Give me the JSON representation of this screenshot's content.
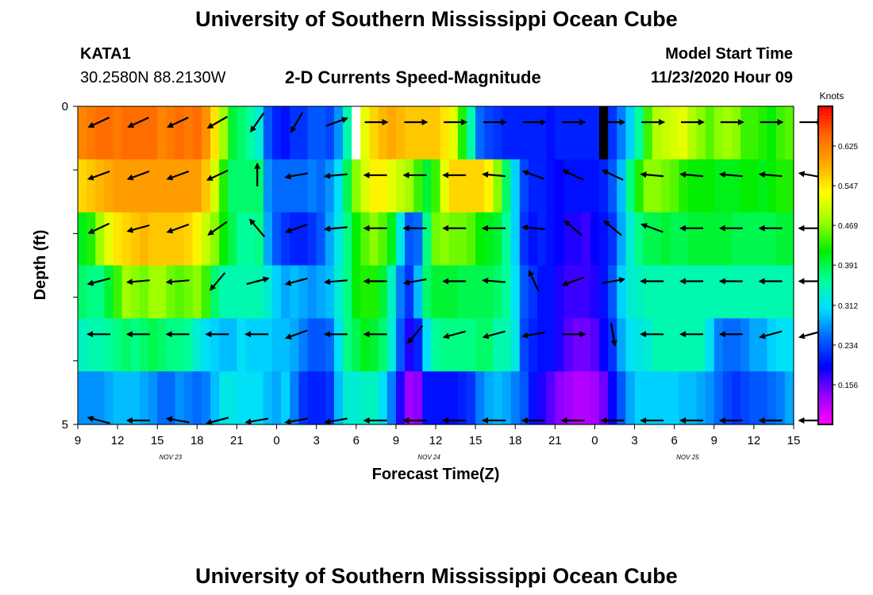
{
  "header": {
    "title": "University of Southern Mississippi Ocean Cube",
    "station_id": "KATA1",
    "station_coords": "30.2580N 88.2130W",
    "subtitle": "2-D Currents Speed-Magnitude",
    "model_start_label": "Model Start Time",
    "model_start_value": "11/23/2020 Hour 09"
  },
  "footer": {
    "title": "University of Southern Mississippi Ocean Cube"
  },
  "chart_data": {
    "type": "heatmap",
    "title": "2-D Currents Speed-Magnitude",
    "xlabel": "Forecast Time(Z)",
    "ylabel": "Depth (ft)",
    "x_tick_labels": [
      "9",
      "12",
      "15",
      "18",
      "21",
      "0",
      "3",
      "6",
      "9",
      "12",
      "15",
      "18",
      "21",
      "0",
      "3",
      "6",
      "9",
      "12",
      "15"
    ],
    "date_labels": [
      {
        "label": "NOV  23",
        "hour_index": 7
      },
      {
        "label": "NOV  24",
        "hour_index": 26.5
      },
      {
        "label": "NOV  25",
        "hour_index": 46
      }
    ],
    "x_range_hours": [
      0,
      54
    ],
    "y_ticks": [
      "0",
      "",
      "",
      "",
      "",
      "5"
    ],
    "ylim": [
      0,
      5
    ],
    "colorbar": {
      "label": "Knots",
      "tick_labels": [
        "0.625",
        "0.547",
        "0.469",
        "0.391",
        "0.312",
        "0.234",
        "0.156"
      ],
      "tick_values": [
        0.625,
        0.547,
        0.469,
        0.391,
        0.312,
        0.234,
        0.156
      ],
      "range": [
        0.078,
        0.703
      ],
      "colors": [
        "#ff00ff",
        "#9900ff",
        "#0000ff",
        "#0066ff",
        "#00ddff",
        "#00ff99",
        "#00ee00",
        "#99ff00",
        "#ffff00",
        "#ffaa00",
        "#ff6600",
        "#ff0000"
      ]
    },
    "speed_knots_by_depth_band": [
      [
        0.62,
        0.63,
        0.64,
        0.64,
        0.63,
        0.64,
        0.64,
        0.64,
        0.64,
        0.62,
        0.63,
        0.64,
        0.63,
        0.64,
        0.61,
        0.55,
        0.48,
        0.4,
        0.38,
        0.36,
        0.33,
        0.24,
        0.21,
        0.2,
        0.22,
        0.22,
        0.24,
        0.24,
        0.23,
        0.27,
        0.35,
        0.45,
        0.52,
        0.56,
        0.58,
        0.59,
        0.58,
        0.57,
        0.57,
        0.57,
        0.57,
        0.55,
        0.52,
        0.43,
        0.35,
        0.25,
        0.23,
        0.22,
        0.21,
        0.21,
        0.21,
        0.21,
        0.21,
        0.2,
        0.21,
        0.21,
        0.21,
        0.21,
        0.21,
        0.2,
        0.22,
        0.26,
        0.3,
        0.36,
        0.44,
        0.49,
        0.5,
        0.51,
        0.52,
        0.49,
        0.47,
        0.45,
        0.47,
        0.48,
        0.47,
        0.44,
        0.44,
        0.43,
        0.42,
        0.44,
        0.45
      ],
      [
        0.56,
        0.57,
        0.58,
        0.59,
        0.6,
        0.6,
        0.6,
        0.6,
        0.6,
        0.6,
        0.6,
        0.6,
        0.6,
        0.6,
        0.57,
        0.51,
        0.43,
        0.38,
        0.38,
        0.38,
        0.38,
        0.27,
        0.25,
        0.25,
        0.25,
        0.25,
        0.26,
        0.25,
        0.27,
        0.31,
        0.39,
        0.47,
        0.51,
        0.54,
        0.54,
        0.52,
        0.5,
        0.48,
        0.44,
        0.4,
        0.44,
        0.52,
        0.56,
        0.56,
        0.56,
        0.56,
        0.54,
        0.47,
        0.38,
        0.3,
        0.23,
        0.21,
        0.21,
        0.2,
        0.19,
        0.2,
        0.2,
        0.2,
        0.2,
        0.21,
        0.24,
        0.29,
        0.37,
        0.43,
        0.47,
        0.47,
        0.46,
        0.45,
        0.43,
        0.42,
        0.42,
        0.42,
        0.41,
        0.41,
        0.41,
        0.42,
        0.42,
        0.41,
        0.42,
        0.43,
        0.43
      ],
      [
        0.41,
        0.43,
        0.48,
        0.52,
        0.55,
        0.56,
        0.57,
        0.58,
        0.57,
        0.57,
        0.57,
        0.57,
        0.56,
        0.54,
        0.5,
        0.47,
        0.42,
        0.39,
        0.36,
        0.36,
        0.37,
        0.28,
        0.24,
        0.22,
        0.21,
        0.21,
        0.22,
        0.24,
        0.28,
        0.32,
        0.37,
        0.42,
        0.45,
        0.47,
        0.45,
        0.41,
        0.32,
        0.24,
        0.25,
        0.37,
        0.46,
        0.47,
        0.46,
        0.46,
        0.45,
        0.42,
        0.41,
        0.4,
        0.36,
        0.3,
        0.22,
        0.2,
        0.21,
        0.2,
        0.19,
        0.18,
        0.18,
        0.17,
        0.19,
        0.2,
        0.22,
        0.28,
        0.33,
        0.37,
        0.39,
        0.39,
        0.4,
        0.39,
        0.39,
        0.4,
        0.4,
        0.4,
        0.4,
        0.4,
        0.39,
        0.39,
        0.39,
        0.39,
        0.39,
        0.4,
        0.4
      ],
      [
        0.38,
        0.37,
        0.37,
        0.4,
        0.44,
        0.48,
        0.47,
        0.46,
        0.48,
        0.48,
        0.46,
        0.45,
        0.46,
        0.47,
        0.44,
        0.38,
        0.35,
        0.35,
        0.35,
        0.35,
        0.35,
        0.33,
        0.3,
        0.28,
        0.29,
        0.28,
        0.27,
        0.28,
        0.29,
        0.33,
        0.37,
        0.42,
        0.43,
        0.43,
        0.4,
        0.34,
        0.26,
        0.22,
        0.29,
        0.38,
        0.4,
        0.4,
        0.4,
        0.39,
        0.39,
        0.39,
        0.39,
        0.38,
        0.36,
        0.31,
        0.24,
        0.22,
        0.2,
        0.2,
        0.18,
        0.17,
        0.17,
        0.17,
        0.18,
        0.2,
        0.24,
        0.3,
        0.33,
        0.34,
        0.35,
        0.35,
        0.35,
        0.35,
        0.35,
        0.35,
        0.35,
        0.35,
        0.35,
        0.35,
        0.35,
        0.35,
        0.35,
        0.35,
        0.35,
        0.35,
        0.35
      ],
      [
        0.34,
        0.35,
        0.35,
        0.36,
        0.37,
        0.38,
        0.37,
        0.38,
        0.39,
        0.38,
        0.37,
        0.37,
        0.36,
        0.33,
        0.31,
        0.3,
        0.29,
        0.29,
        0.31,
        0.3,
        0.3,
        0.3,
        0.29,
        0.29,
        0.28,
        0.26,
        0.24,
        0.24,
        0.25,
        0.31,
        0.37,
        0.39,
        0.41,
        0.4,
        0.38,
        0.33,
        0.24,
        0.18,
        0.21,
        0.31,
        0.36,
        0.37,
        0.37,
        0.37,
        0.37,
        0.38,
        0.38,
        0.35,
        0.35,
        0.32,
        0.23,
        0.21,
        0.2,
        0.2,
        0.18,
        0.16,
        0.15,
        0.15,
        0.16,
        0.19,
        0.22,
        0.28,
        0.31,
        0.32,
        0.33,
        0.35,
        0.35,
        0.35,
        0.35,
        0.35,
        0.35,
        0.31,
        0.26,
        0.25,
        0.25,
        0.26,
        0.28,
        0.28,
        0.3,
        0.31,
        0.31
      ],
      [
        0.27,
        0.27,
        0.27,
        0.28,
        0.29,
        0.29,
        0.29,
        0.28,
        0.27,
        0.25,
        0.25,
        0.27,
        0.26,
        0.25,
        0.26,
        0.29,
        0.32,
        0.32,
        0.31,
        0.31,
        0.31,
        0.29,
        0.28,
        0.3,
        0.26,
        0.22,
        0.21,
        0.21,
        0.22,
        0.29,
        0.33,
        0.33,
        0.34,
        0.34,
        0.31,
        0.26,
        0.18,
        0.13,
        0.14,
        0.2,
        0.2,
        0.2,
        0.2,
        0.21,
        0.22,
        0.26,
        0.28,
        0.29,
        0.28,
        0.26,
        0.24,
        0.2,
        0.18,
        0.16,
        0.14,
        0.13,
        0.12,
        0.12,
        0.13,
        0.15,
        0.19,
        0.24,
        0.28,
        0.3,
        0.3,
        0.3,
        0.3,
        0.3,
        0.29,
        0.29,
        0.28,
        0.27,
        0.25,
        0.23,
        0.22,
        0.23,
        0.24,
        0.24,
        0.25,
        0.26,
        0.28
      ]
    ],
    "missing_cells": [
      {
        "band": 0,
        "column": 31,
        "color": "#ffffff"
      },
      {
        "band": 0,
        "column": 59,
        "color": "#000000"
      }
    ],
    "current_direction_deg_by_depth_band": [
      [
        205,
        205,
        205,
        210,
        235,
        240,
        20,
        0,
        0,
        0,
        0,
        0,
        0,
        0,
        0,
        0,
        0,
        0,
        0
      ],
      [
        200,
        200,
        200,
        205,
        90,
        190,
        185,
        180,
        180,
        180,
        175,
        160,
        155,
        155,
        175,
        175,
        175,
        175,
        170
      ],
      [
        205,
        195,
        200,
        215,
        130,
        200,
        185,
        180,
        180,
        180,
        180,
        175,
        140,
        140,
        160,
        180,
        180,
        180,
        180
      ],
      [
        195,
        185,
        185,
        230,
        15,
        195,
        185,
        180,
        190,
        180,
        175,
        115,
        200,
        10,
        180,
        180,
        180,
        180,
        180
      ],
      [
        180,
        180,
        180,
        180,
        180,
        200,
        180,
        180,
        230,
        195,
        195,
        190,
        0,
        280,
        180,
        180,
        180,
        195,
        195
      ],
      [
        165,
        180,
        170,
        195,
        190,
        190,
        190,
        180,
        180,
        180,
        180,
        180,
        180,
        180,
        180,
        180,
        180,
        180,
        180
      ]
    ]
  }
}
